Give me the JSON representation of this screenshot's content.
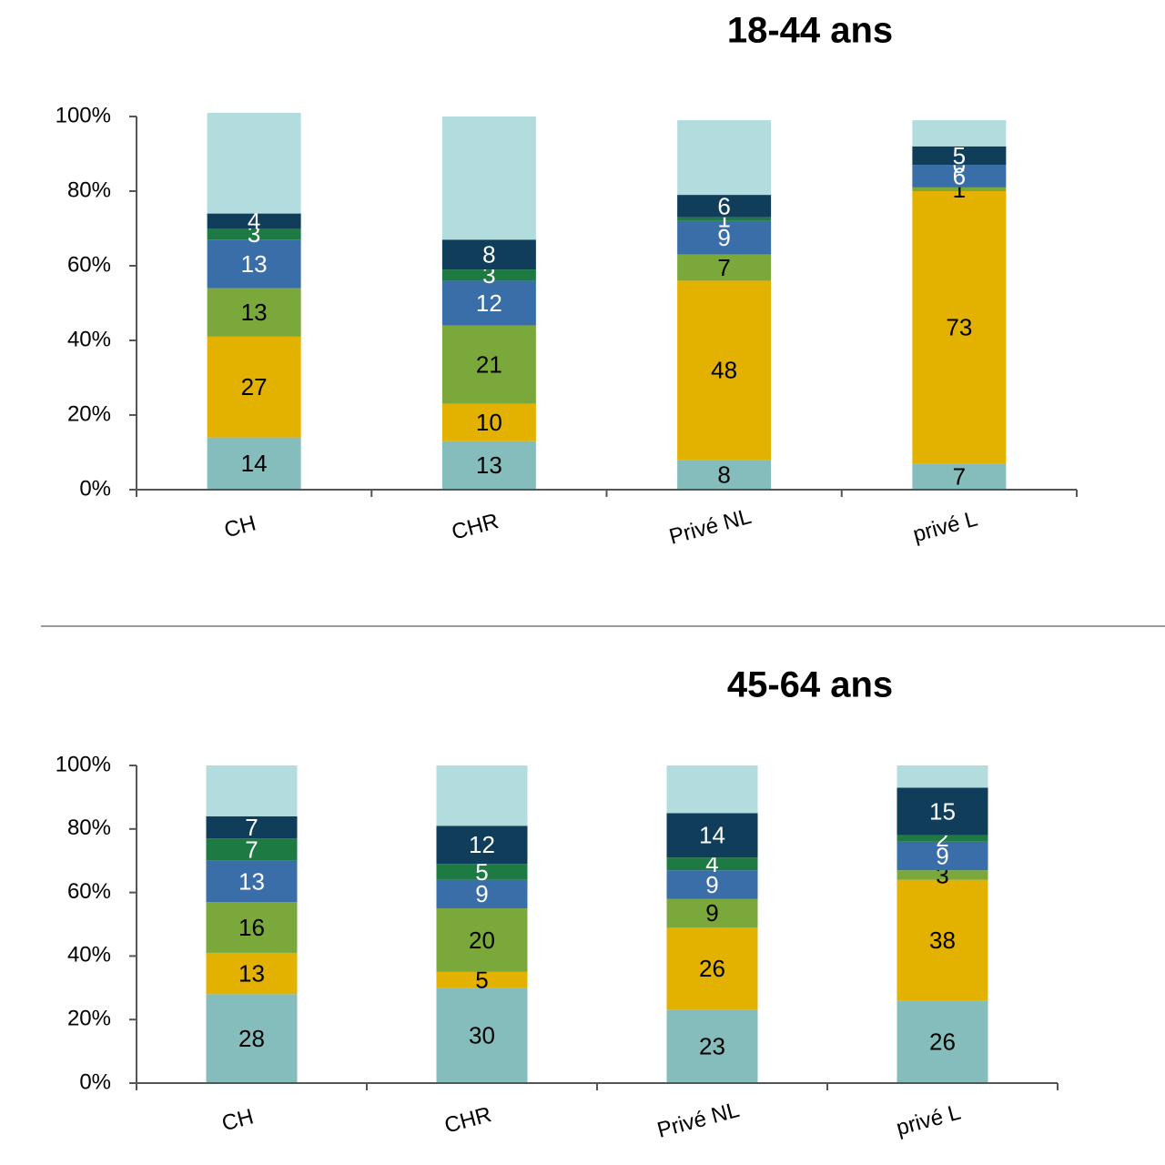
{
  "chart_data": [
    {
      "type": "stacked_bar",
      "title": "18-44 ans",
      "categories": [
        "CH",
        "CHR",
        "Privé NL",
        "privé L"
      ],
      "ylim": [
        0,
        100
      ],
      "yticks": [
        {
          "value": 0,
          "label": "0%"
        },
        {
          "value": 20,
          "label": "20%"
        },
        {
          "value": 40,
          "label": "40%"
        },
        {
          "value": 60,
          "label": "60%"
        },
        {
          "value": 80,
          "label": "80%"
        },
        {
          "value": 100,
          "label": "100%"
        }
      ],
      "series": [
        {
          "color": "#85bcbc",
          "values": [
            14,
            13,
            8,
            7
          ]
        },
        {
          "color": "#e3b100",
          "values": [
            27,
            10,
            48,
            73
          ]
        },
        {
          "color": "#7aa83b",
          "values": [
            13,
            21,
            7,
            1
          ]
        },
        {
          "color": "#3a6ea8",
          "values": [
            13,
            12,
            9,
            6
          ]
        },
        {
          "color": "#1d7a43",
          "values": [
            3,
            3,
            1,
            0
          ]
        },
        {
          "color": "#0f3d5a",
          "values": [
            4,
            8,
            6,
            5
          ]
        },
        {
          "color": "#b3dcdf",
          "values": [
            27,
            33,
            20,
            7
          ],
          "data_labels": false
        }
      ]
    },
    {
      "type": "stacked_bar",
      "title": "45-64 ans",
      "categories": [
        "CH",
        "CHR",
        "Privé NL",
        "privé L"
      ],
      "ylim": [
        0,
        100
      ],
      "yticks": [
        {
          "value": 0,
          "label": "0%"
        },
        {
          "value": 20,
          "label": "20%"
        },
        {
          "value": 40,
          "label": "40%"
        },
        {
          "value": 60,
          "label": "60%"
        },
        {
          "value": 80,
          "label": "80%"
        },
        {
          "value": 100,
          "label": "100%"
        }
      ],
      "series": [
        {
          "color": "#85bcbc",
          "values": [
            28,
            30,
            23,
            26
          ]
        },
        {
          "color": "#e3b100",
          "values": [
            13,
            5,
            26,
            38
          ]
        },
        {
          "color": "#7aa83b",
          "values": [
            16,
            20,
            9,
            3
          ]
        },
        {
          "color": "#3a6ea8",
          "values": [
            13,
            9,
            9,
            9
          ]
        },
        {
          "color": "#1d7a43",
          "values": [
            7,
            5,
            4,
            2
          ]
        },
        {
          "color": "#0f3d5a",
          "values": [
            7,
            12,
            14,
            15
          ]
        },
        {
          "color": "#b3dcdf",
          "values": [
            16,
            19,
            15,
            7
          ],
          "data_labels": false
        }
      ]
    }
  ]
}
